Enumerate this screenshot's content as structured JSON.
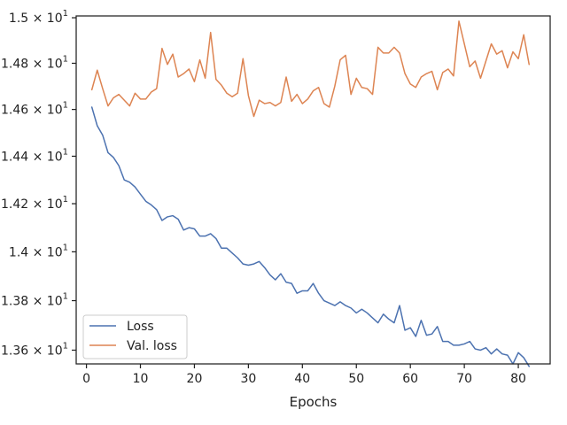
{
  "chart_data": {
    "type": "line",
    "title": "",
    "xlabel": "Epochs",
    "ylabel": "",
    "xlim": [
      -1.9,
      85.9
    ],
    "ylim": [
      13.545,
      15.008
    ],
    "y_scale": "log",
    "grid": false,
    "legend_position": "lower-left",
    "x_ticks": [
      0,
      10,
      20,
      30,
      40,
      50,
      60,
      70,
      80
    ],
    "x_tick_labels": [
      "0",
      "10",
      "20",
      "30",
      "40",
      "50",
      "60",
      "70",
      "80"
    ],
    "y_ticks": [
      13.6,
      13.8,
      14.0,
      14.2,
      14.4,
      14.6,
      14.8,
      15.0
    ],
    "y_tick_labels": [
      {
        "mantissa": "1.36",
        "base": "10",
        "exp": "1"
      },
      {
        "mantissa": "1.38",
        "base": "10",
        "exp": "1"
      },
      {
        "mantissa": "1.4",
        "base": "10",
        "exp": "1"
      },
      {
        "mantissa": "1.42",
        "base": "10",
        "exp": "1"
      },
      {
        "mantissa": "1.44",
        "base": "10",
        "exp": "1"
      },
      {
        "mantissa": "1.46",
        "base": "10",
        "exp": "1"
      },
      {
        "mantissa": "1.48",
        "base": "10",
        "exp": "1"
      },
      {
        "mantissa": "1.5",
        "base": "10",
        "exp": "1"
      }
    ],
    "x": [
      1,
      2,
      3,
      4,
      5,
      6,
      7,
      8,
      9,
      10,
      11,
      12,
      13,
      14,
      15,
      16,
      17,
      18,
      19,
      20,
      21,
      22,
      23,
      24,
      25,
      26,
      27,
      28,
      29,
      30,
      31,
      32,
      33,
      34,
      35,
      36,
      37,
      38,
      39,
      40,
      41,
      42,
      43,
      44,
      45,
      46,
      47,
      48,
      49,
      50,
      51,
      52,
      53,
      54,
      55,
      56,
      57,
      58,
      59,
      60,
      61,
      62,
      63,
      64,
      65,
      66,
      67,
      68,
      69,
      70,
      71,
      72,
      73,
      74,
      75,
      76,
      77,
      78,
      79,
      80,
      81,
      82
    ],
    "series": [
      {
        "name": "Loss",
        "color": "#4c72b0",
        "values": [
          14.61,
          14.53,
          14.49,
          14.415,
          14.395,
          14.36,
          14.3,
          14.29,
          14.27,
          14.24,
          14.21,
          14.195,
          14.175,
          14.13,
          14.145,
          14.15,
          14.135,
          14.09,
          14.1,
          14.095,
          14.065,
          14.065,
          14.075,
          14.055,
          14.015,
          14.015,
          13.995,
          13.975,
          13.95,
          13.945,
          13.95,
          13.96,
          13.935,
          13.905,
          13.885,
          13.91,
          13.875,
          13.87,
          13.83,
          13.84,
          13.84,
          13.87,
          13.83,
          13.8,
          13.79,
          13.78,
          13.795,
          13.78,
          13.77,
          13.75,
          13.765,
          13.75,
          13.73,
          13.71,
          13.745,
          13.725,
          13.71,
          13.78,
          13.68,
          13.69,
          13.655,
          13.72,
          13.66,
          13.665,
          13.695,
          13.635,
          13.635,
          13.62,
          13.62,
          13.625,
          13.635,
          13.605,
          13.6,
          13.61,
          13.585,
          13.605,
          13.585,
          13.58,
          13.545,
          13.59,
          13.57,
          13.535
        ]
      },
      {
        "name": "Val. loss",
        "color": "#dd8452",
        "values": [
          14.685,
          14.77,
          14.69,
          14.615,
          14.65,
          14.665,
          14.64,
          14.615,
          14.67,
          14.645,
          14.645,
          14.675,
          14.69,
          14.865,
          14.795,
          14.84,
          14.74,
          14.755,
          14.775,
          14.72,
          14.815,
          14.735,
          14.935,
          14.73,
          14.705,
          14.67,
          14.655,
          14.67,
          14.82,
          14.66,
          14.57,
          14.64,
          14.625,
          14.63,
          14.615,
          14.63,
          14.74,
          14.635,
          14.665,
          14.625,
          14.645,
          14.68,
          14.695,
          14.625,
          14.61,
          14.7,
          14.815,
          14.835,
          14.665,
          14.735,
          14.695,
          14.69,
          14.665,
          14.87,
          14.845,
          14.845,
          14.87,
          14.845,
          14.755,
          14.71,
          14.695,
          14.74,
          14.755,
          14.765,
          14.685,
          14.76,
          14.775,
          14.745,
          14.985,
          14.885,
          14.785,
          14.81,
          14.735,
          14.81,
          14.885,
          14.84,
          14.855,
          14.78,
          14.85,
          14.82,
          14.925,
          14.795
        ]
      }
    ]
  }
}
